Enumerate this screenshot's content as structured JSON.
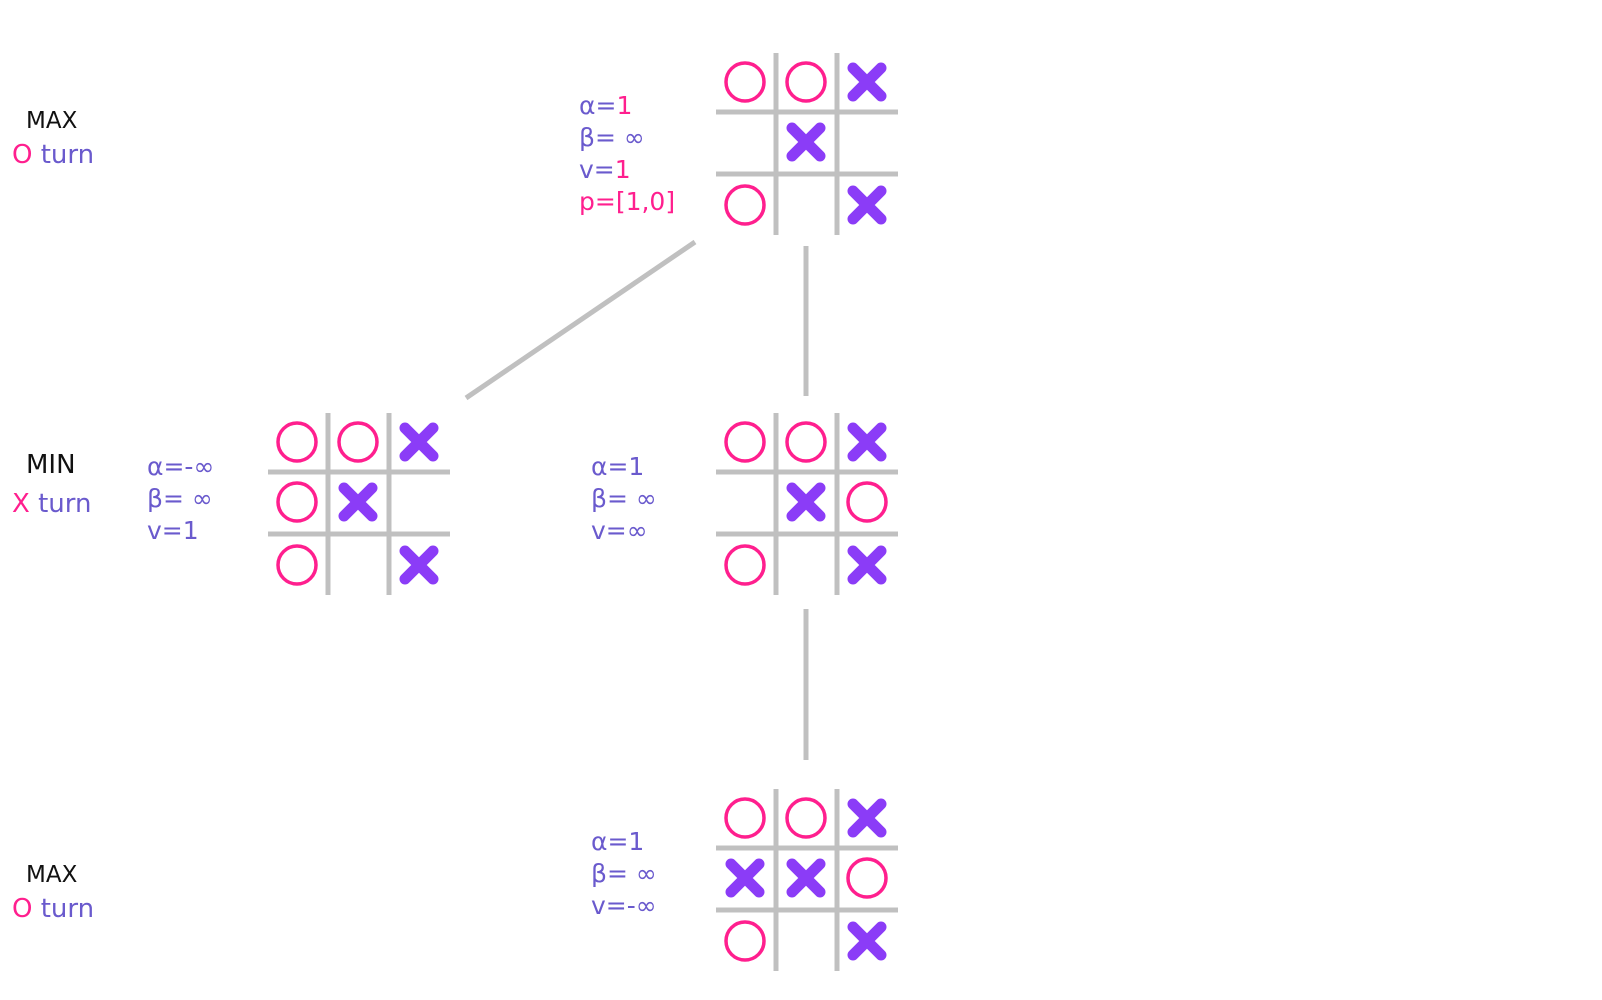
{
  "colors": {
    "o_mark": "#ff1f8e",
    "x_mark": "#8b3cf7",
    "grid": "#c0c0c0",
    "stat_text": "#6a5acd",
    "highlight": "#ff1f8e",
    "title_text": "#111111"
  },
  "levels": [
    {
      "id": "level-0",
      "title": "MAX",
      "player": "O",
      "turn_word": "turn"
    },
    {
      "id": "level-1",
      "title": "MIN",
      "player": "X",
      "turn_word": "turn"
    },
    {
      "id": "level-2",
      "title": "MAX",
      "player": "O",
      "turn_word": "turn"
    }
  ],
  "nodes": [
    {
      "id": "root",
      "board": [
        "O",
        "O",
        "X",
        "",
        "X",
        "",
        "O",
        "",
        "X"
      ],
      "stats": {
        "alpha": "α=",
        "alpha_val": "1",
        "beta": "β= ∞",
        "v": "v=",
        "v_val": "1",
        "p": "p=[1,0]"
      }
    },
    {
      "id": "child-left",
      "board": [
        "O",
        "O",
        "X",
        "O",
        "X",
        "",
        "O",
        "",
        "X"
      ],
      "stats": {
        "alpha": "α=-∞",
        "beta": "β= ∞",
        "v": "v=1"
      }
    },
    {
      "id": "child-right",
      "board": [
        "O",
        "O",
        "X",
        "",
        "X",
        "O",
        "O",
        "",
        "X"
      ],
      "stats": {
        "alpha": "α=1",
        "beta": "β= ∞",
        "v": "v=∞"
      }
    },
    {
      "id": "grandchild",
      "board": [
        "O",
        "O",
        "X",
        "X",
        "X",
        "O",
        "O",
        "",
        "X"
      ],
      "stats": {
        "alpha": "α=1",
        "beta": "β= ∞",
        "v": "v=-∞"
      }
    }
  ],
  "edges": [
    {
      "from": "root",
      "to": "child-left"
    },
    {
      "from": "root",
      "to": "child-right"
    },
    {
      "from": "child-right",
      "to": "grandchild"
    }
  ]
}
